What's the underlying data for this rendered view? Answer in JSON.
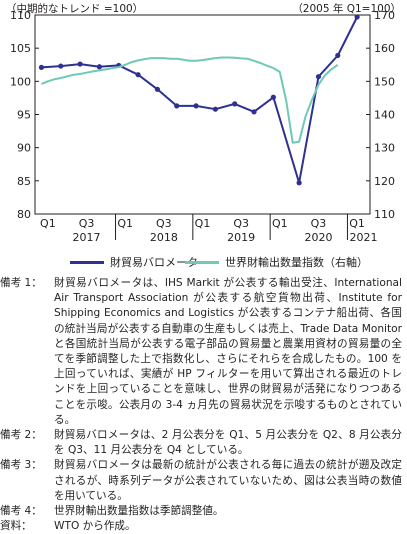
{
  "chart_data": {
    "type": "line",
    "unit_left": "（中期的なトレンド =100）",
    "unit_right": "（2005 年 Q1=100）",
    "x_tick_labels": [
      "Q1",
      "Q3",
      "Q1",
      "Q3",
      "Q1",
      "Q3",
      "Q1",
      "Q3",
      "Q1"
    ],
    "year_labels": [
      "2017",
      "2018",
      "2019",
      "2020",
      "2021"
    ],
    "x_months": [
      "2017-01",
      "2017-02",
      "2017-03",
      "2017-04",
      "2017-05",
      "2017-06",
      "2017-07",
      "2017-08",
      "2017-09",
      "2017-10",
      "2017-11",
      "2017-12",
      "2018-01",
      "2018-02",
      "2018-03",
      "2018-04",
      "2018-05",
      "2018-06",
      "2018-07",
      "2018-08",
      "2018-09",
      "2018-10",
      "2018-11",
      "2018-12",
      "2019-01",
      "2019-02",
      "2019-03",
      "2019-04",
      "2019-05",
      "2019-06",
      "2019-07",
      "2019-08",
      "2019-09",
      "2019-10",
      "2019-11",
      "2019-12",
      "2020-01",
      "2020-02",
      "2020-03",
      "2020-04",
      "2020-05",
      "2020-06",
      "2020-07",
      "2020-08",
      "2020-09",
      "2020-10",
      "2020-11",
      "2020-12",
      "2021-01",
      "2021-02",
      "2021-03"
    ],
    "y_left": {
      "min": 80,
      "max": 110,
      "ticks": [
        80,
        85,
        90,
        95,
        100,
        105,
        110
      ]
    },
    "y_right": {
      "min": 110,
      "max": 170,
      "ticks": [
        110,
        120,
        130,
        140,
        150,
        160,
        170
      ]
    },
    "grid": false,
    "legend_position": "bottom",
    "series": [
      {
        "name": "財貿易バロメータ",
        "axis": "left",
        "color": "#2e3192",
        "marker": "circle",
        "points": [
          {
            "x": "2017-01",
            "y": 102.1
          },
          {
            "x": "2017-04",
            "y": 102.3
          },
          {
            "x": "2017-07",
            "y": 102.6
          },
          {
            "x": "2017-10",
            "y": 102.2
          },
          {
            "x": "2018-01",
            "y": 102.4
          },
          {
            "x": "2018-04",
            "y": 101.0
          },
          {
            "x": "2018-07",
            "y": 98.8
          },
          {
            "x": "2018-10",
            "y": 96.3
          },
          {
            "x": "2019-01",
            "y": 96.3
          },
          {
            "x": "2019-04",
            "y": 95.8
          },
          {
            "x": "2019-07",
            "y": 96.6
          },
          {
            "x": "2019-10",
            "y": 95.4
          },
          {
            "x": "2020-01",
            "y": 97.6
          },
          {
            "x": "2020-05",
            "y": 84.7
          },
          {
            "x": "2020-08",
            "y": 100.7
          },
          {
            "x": "2020-11",
            "y": 103.9
          },
          {
            "x": "2021-02",
            "y": 109.7
          }
        ]
      },
      {
        "name": "世界財輸出数量指数（右軸）",
        "axis": "right",
        "color": "#6fc9b4",
        "marker": "none",
        "points": [
          {
            "x": "2017-01",
            "y": 149.2
          },
          {
            "x": "2017-02",
            "y": 150.0
          },
          {
            "x": "2017-03",
            "y": 150.6
          },
          {
            "x": "2017-04",
            "y": 151.0
          },
          {
            "x": "2017-05",
            "y": 151.5
          },
          {
            "x": "2017-06",
            "y": 152.0
          },
          {
            "x": "2017-07",
            "y": 152.2
          },
          {
            "x": "2017-08",
            "y": 152.6
          },
          {
            "x": "2017-09",
            "y": 153.0
          },
          {
            "x": "2017-10",
            "y": 153.3
          },
          {
            "x": "2017-11",
            "y": 153.6
          },
          {
            "x": "2017-12",
            "y": 154.0
          },
          {
            "x": "2018-01",
            "y": 154.3
          },
          {
            "x": "2018-02",
            "y": 155.0
          },
          {
            "x": "2018-03",
            "y": 155.8
          },
          {
            "x": "2018-04",
            "y": 156.3
          },
          {
            "x": "2018-05",
            "y": 156.7
          },
          {
            "x": "2018-06",
            "y": 157.0
          },
          {
            "x": "2018-07",
            "y": 157.0
          },
          {
            "x": "2018-08",
            "y": 157.0
          },
          {
            "x": "2018-09",
            "y": 156.8
          },
          {
            "x": "2018-10",
            "y": 156.8
          },
          {
            "x": "2018-11",
            "y": 156.5
          },
          {
            "x": "2018-12",
            "y": 156.2
          },
          {
            "x": "2019-01",
            "y": 156.2
          },
          {
            "x": "2019-02",
            "y": 156.4
          },
          {
            "x": "2019-03",
            "y": 156.7
          },
          {
            "x": "2019-04",
            "y": 157.0
          },
          {
            "x": "2019-05",
            "y": 157.2
          },
          {
            "x": "2019-06",
            "y": 157.2
          },
          {
            "x": "2019-07",
            "y": 157.1
          },
          {
            "x": "2019-08",
            "y": 156.9
          },
          {
            "x": "2019-09",
            "y": 156.8
          },
          {
            "x": "2019-10",
            "y": 156.2
          },
          {
            "x": "2019-11",
            "y": 155.5
          },
          {
            "x": "2019-12",
            "y": 154.7
          },
          {
            "x": "2020-01",
            "y": 154.0
          },
          {
            "x": "2020-02",
            "y": 152.8
          },
          {
            "x": "2020-03",
            "y": 144.0
          },
          {
            "x": "2020-04",
            "y": 131.5
          },
          {
            "x": "2020-05",
            "y": 131.8
          },
          {
            "x": "2020-06",
            "y": 139.5
          },
          {
            "x": "2020-07",
            "y": 144.5
          },
          {
            "x": "2020-08",
            "y": 149.0
          },
          {
            "x": "2020-09",
            "y": 151.8
          },
          {
            "x": "2020-10",
            "y": 153.6
          },
          {
            "x": "2020-11",
            "y": 155.0
          }
        ]
      }
    ]
  },
  "notes": [
    {
      "label": "備考 1：",
      "text": "財貿易バロメータは、IHS Markit が公表する輸出受注、International Air Transport Association が公表する航空貨物出荷、Institute for Shipping Economics and Logistics が公表するコンテナ船出荷、各国の統計当局が公表する自動車の生産もしくは売上、Trade Data Monitor と各国統計当局が公表する電子部品の貿易量と農業用資材の貿易量の全てを季節調整した上で指数化し、さらにそれらを合成したもの。100 を上回っていれば、実績が HP フィルターを用いて算出される最近のトレンドを上回っていることを意味し、世界の財貿易が活発になりつつあることを示唆。公表月の 3-4 ヵ月先の貿易状況を示唆するものとされている。"
    },
    {
      "label": "備考 2：",
      "text": "財貿易バロメータは、2 月公表分を Q1、5 月公表分を Q2、8 月公表分を Q3、11 月公表分を Q4 としている。"
    },
    {
      "label": "備考 3：",
      "text": "財貿易バロメータは最新の統計が公表される毎に過去の統計が遡及改定されるが、時系列データが公表されていないため、図は公表当時の数値を用いている。"
    },
    {
      "label": "備考 4：",
      "text": "世界財輸出数量指数は季節調整値。"
    },
    {
      "label": "資料：",
      "text": "WTO から作成。"
    }
  ]
}
